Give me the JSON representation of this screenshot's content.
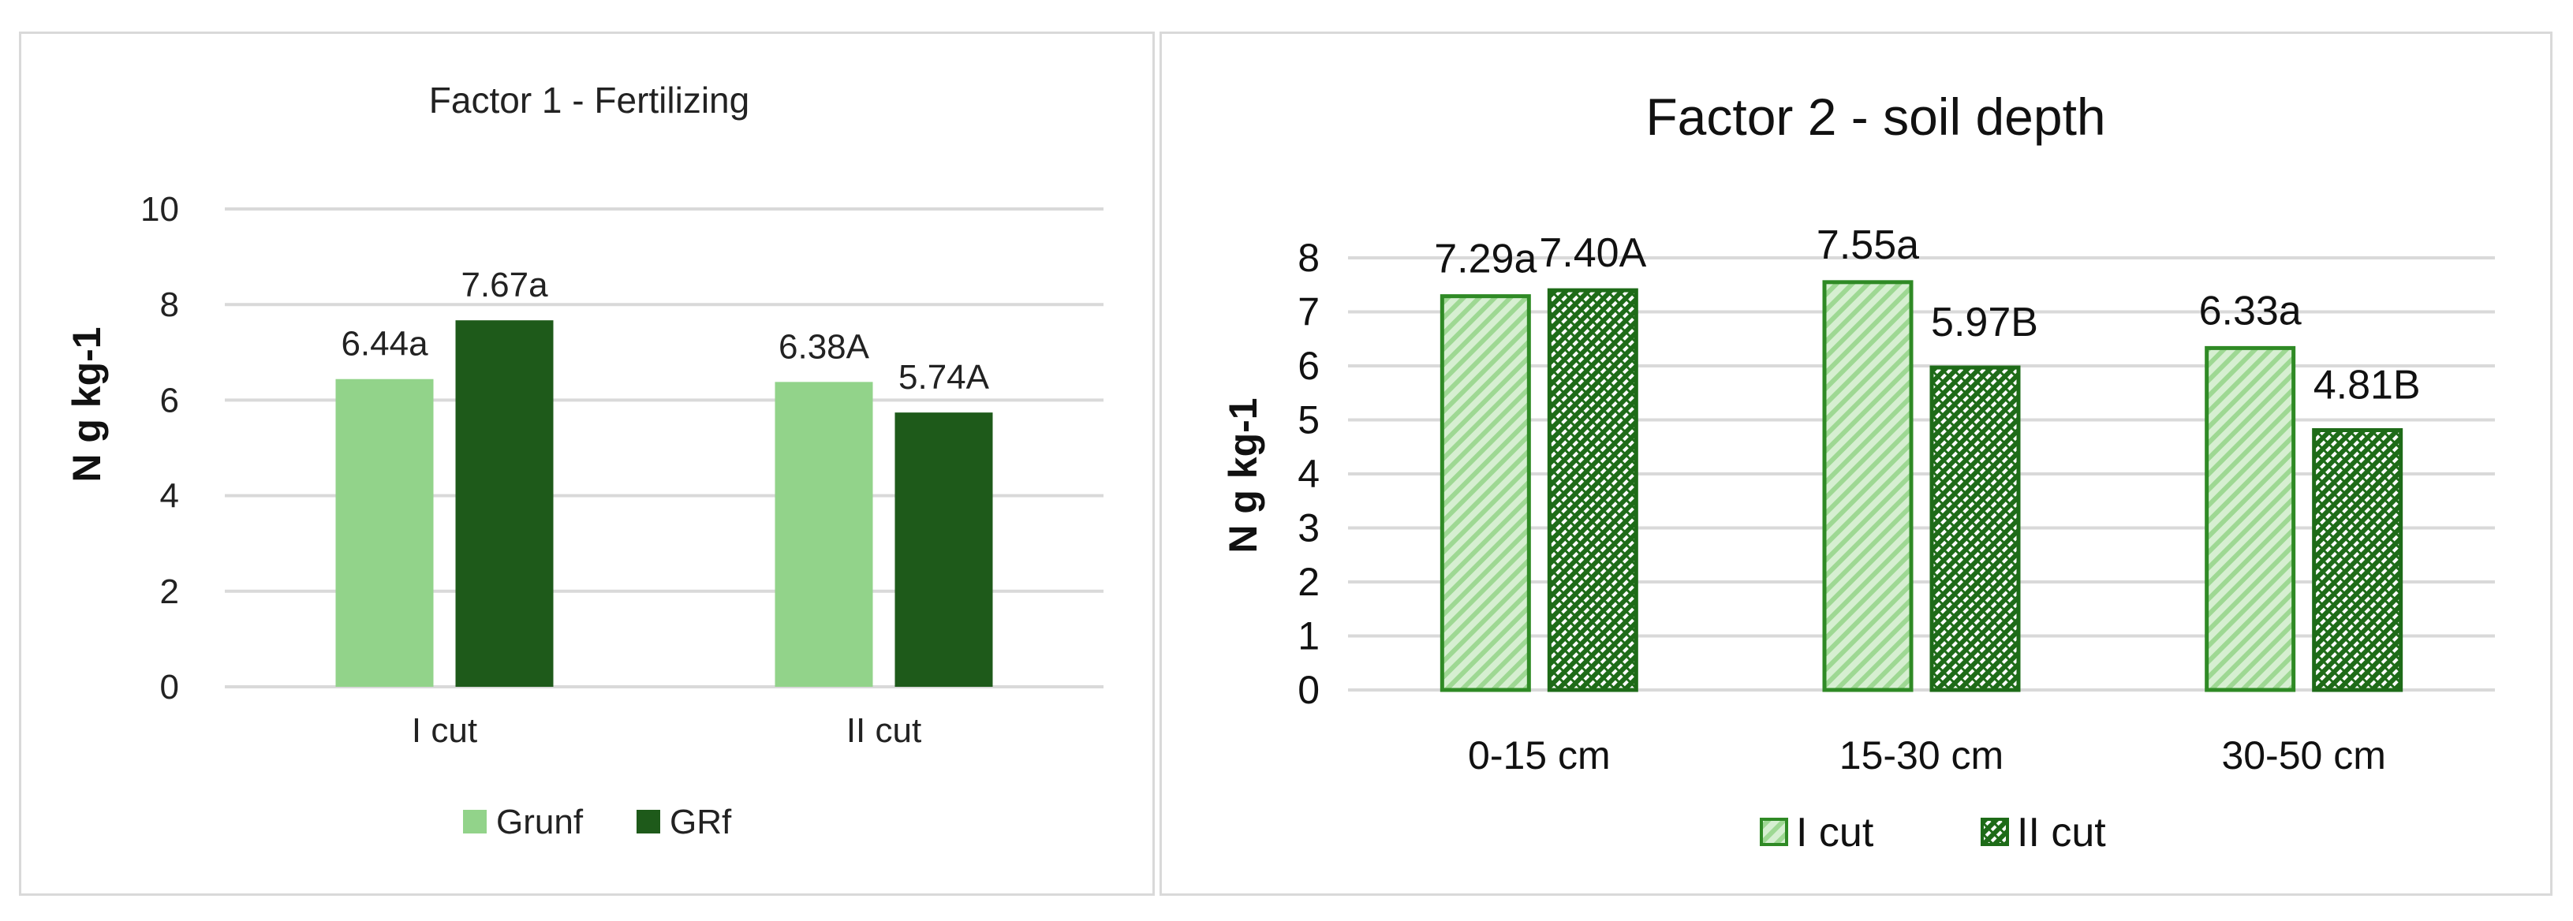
{
  "chart_data": [
    {
      "type": "bar",
      "title": "Factor 1 - Fertilizing",
      "ylabel": "N g kg-1",
      "xlabel": "",
      "categories": [
        "I cut",
        "II cut"
      ],
      "ylim": [
        0,
        10
      ],
      "yticks": [
        "0",
        "2",
        "4",
        "6",
        "8",
        "10"
      ],
      "grid": true,
      "legend_position": "bottom",
      "series": [
        {
          "name": "Grunf",
          "color": "#92d38a",
          "values": [
            6.44,
            6.38
          ],
          "labels": [
            "6.44a",
            "6.38A"
          ]
        },
        {
          "name": "GRf",
          "color": "#1e5a1a",
          "values": [
            7.67,
            5.74
          ],
          "labels": [
            "7.67a",
            "5.74A"
          ]
        }
      ]
    },
    {
      "type": "bar",
      "title": "Factor 2 - soil depth",
      "ylabel": "N g kg-1",
      "xlabel": "",
      "categories": [
        "0-15 cm",
        "15-30 cm",
        "30-50 cm"
      ],
      "ylim": [
        0,
        8
      ],
      "yticks": [
        "0",
        "1",
        "2",
        "3",
        "4",
        "5",
        "6",
        "7",
        "8"
      ],
      "grid": true,
      "legend_position": "bottom",
      "series": [
        {
          "name": "I cut",
          "color": "#2f8a25",
          "pattern": "light-diagonal-stripes",
          "values": [
            7.29,
            7.55,
            6.33
          ],
          "labels": [
            "7.29a",
            "7.55a",
            "6.33a"
          ]
        },
        {
          "name": "II cut",
          "color": "#1e6b18",
          "pattern": "dense-diagonal-checks",
          "values": [
            7.4,
            5.97,
            4.81
          ],
          "labels": [
            "7.40A",
            "5.97B",
            "4.81B"
          ]
        }
      ]
    }
  ]
}
